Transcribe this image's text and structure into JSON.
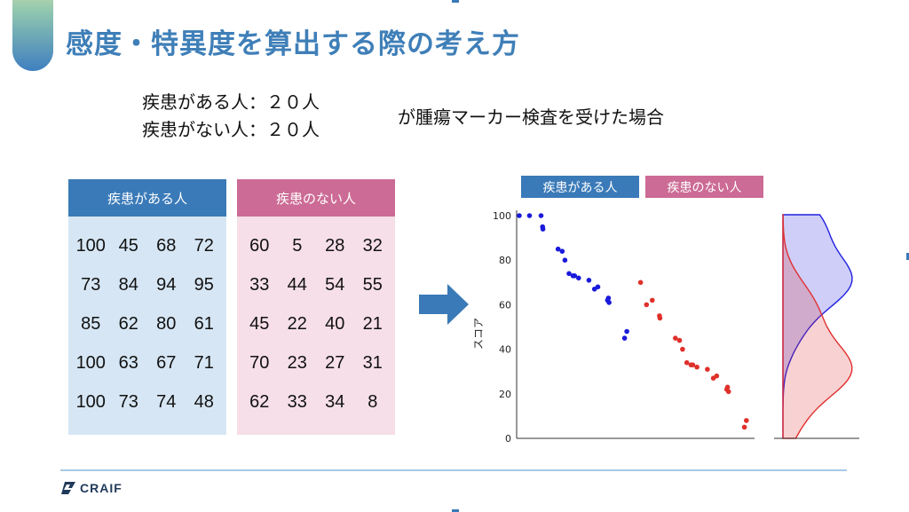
{
  "title": "感度・特異度を算出する際の考え方",
  "intro": {
    "line1": "疾患がある人：２０人",
    "line2": "疾患がない人：２０人",
    "tail": "が腫瘍マーカー検査を受けた場合"
  },
  "groups": [
    {
      "label": "疾患がある人",
      "scores": [
        100,
        45,
        68,
        72,
        73,
        84,
        94,
        95,
        85,
        62,
        80,
        61,
        100,
        63,
        67,
        71,
        100,
        73,
        74,
        48
      ]
    },
    {
      "label": "疾患のない人",
      "scores": [
        60,
        5,
        28,
        32,
        33,
        44,
        54,
        55,
        45,
        22,
        40,
        21,
        70,
        23,
        27,
        31,
        62,
        33,
        34,
        8
      ]
    }
  ],
  "legend": [
    "疾患がある人",
    "疾患のない人"
  ],
  "chart_data": {
    "type": "scatter",
    "ylabel": "スコア",
    "ylim": [
      0,
      100
    ],
    "yticks": [
      "0",
      "20",
      "40",
      "60",
      "80",
      "100"
    ],
    "series": [
      {
        "name": "疾患がある人",
        "color": "#1a1adb",
        "y": [
          100,
          45,
          68,
          72,
          73,
          84,
          94,
          95,
          85,
          62,
          80,
          61,
          100,
          63,
          67,
          71,
          100,
          73,
          74,
          48
        ]
      },
      {
        "name": "疾患のない人",
        "color": "#e0302a",
        "y": [
          60,
          5,
          28,
          32,
          33,
          44,
          54,
          55,
          45,
          22,
          40,
          21,
          70,
          23,
          27,
          31,
          62,
          33,
          34,
          8
        ]
      }
    ],
    "density": {
      "positive_color": "#2020e0",
      "negative_color": "#e03030"
    }
  },
  "footer": {
    "brand": "CRAIF"
  }
}
